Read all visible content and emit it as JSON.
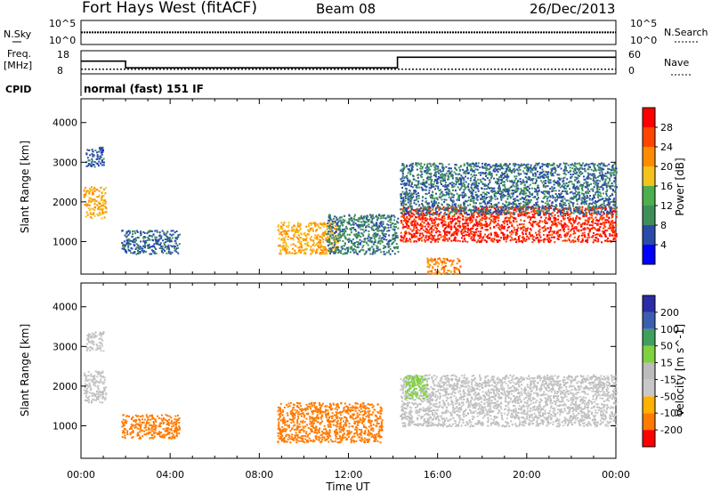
{
  "header": {
    "title": "Fort Hays West (fitACF)",
    "beam": "Beam 08",
    "date": "26/Dec/2013"
  },
  "panels": {
    "noise": {
      "left_label": "N.Sky",
      "right_label": "N.Search",
      "left_ticks": [
        "10^5",
        "10^0"
      ],
      "right_ticks": [
        "10^5",
        "10^0"
      ]
    },
    "freq": {
      "left_label_1": "Freq.",
      "left_label_2": "[MHz]",
      "right_label": "Nave",
      "left_ticks": [
        "18",
        "8"
      ],
      "right_ticks": [
        "60",
        "0"
      ]
    },
    "cpid": {
      "label": "CPID",
      "value": "normal (fast) 151 IF"
    }
  },
  "colors": {
    "power": [
      "#0000ff",
      "#2a4ba8",
      "#3e8e5a",
      "#4cae4c",
      "#f3c21c",
      "#ff8c00",
      "#ff4500",
      "#ff0000"
    ],
    "velocity": [
      "#ff0000",
      "#ff7a00",
      "#ffb000",
      "#c8c8c8",
      "#bcbcbc",
      "#7fd13f",
      "#3f9f5f",
      "#3a5fb0",
      "#2c2ca8"
    ]
  },
  "chart_data": [
    {
      "type": "heatmap",
      "name": "power",
      "ylabel": "Slant Range [km]",
      "yticks": [
        1000,
        2000,
        3000,
        4000
      ],
      "ylim": [
        180,
        4600
      ],
      "colorbar_label": "Power [dB]",
      "colorbar_ticks": [
        4,
        8,
        12,
        16,
        20,
        24,
        28
      ],
      "colorbar_range": [
        0,
        32
      ],
      "regions": [
        {
          "t0": 0.1,
          "t1": 1.1,
          "r0": 1600,
          "r1": 2400,
          "value": 20
        },
        {
          "t0": 0.2,
          "t1": 1.0,
          "r0": 2900,
          "r1": 3400,
          "value": 6
        },
        {
          "t0": 1.8,
          "t1": 4.4,
          "r0": 700,
          "r1": 1300,
          "value": 7
        },
        {
          "t0": 8.8,
          "t1": 11.5,
          "r0": 700,
          "r1": 1500,
          "value": 20
        },
        {
          "t0": 11.0,
          "t1": 14.2,
          "r0": 700,
          "r1": 1700,
          "value": 9
        },
        {
          "t0": 14.3,
          "t1": 24.0,
          "r0": 1000,
          "r1": 1900,
          "value": 28
        },
        {
          "t0": 14.3,
          "t1": 24.0,
          "r0": 1700,
          "r1": 3000,
          "value": 8
        },
        {
          "t0": 15.5,
          "t1": 17.0,
          "r0": 200,
          "r1": 600,
          "value": 22
        }
      ]
    },
    {
      "type": "heatmap",
      "name": "velocity",
      "xlabel": "Time UT",
      "ylabel": "Slant Range [km]",
      "xticks": [
        "00:00",
        "04:00",
        "08:00",
        "12:00",
        "16:00",
        "20:00",
        "00:00"
      ],
      "xlim": [
        0,
        24
      ],
      "yticks": [
        1000,
        2000,
        3000,
        4000
      ],
      "ylim": [
        180,
        4600
      ],
      "colorbar_label": "Velocity [m s^-1]",
      "colorbar_ticks": [
        "200",
        "100",
        "50",
        "15",
        "-15",
        "-50",
        "-100",
        "-200"
      ],
      "regions": [
        {
          "t0": 0.1,
          "t1": 1.1,
          "r0": 1600,
          "r1": 2400,
          "value": 0
        },
        {
          "t0": 0.2,
          "t1": 1.0,
          "r0": 2900,
          "r1": 3400,
          "value": 0
        },
        {
          "t0": 1.8,
          "t1": 4.4,
          "r0": 700,
          "r1": 1300,
          "value": -60
        },
        {
          "t0": 8.8,
          "t1": 13.5,
          "r0": 600,
          "r1": 1600,
          "value": -60
        },
        {
          "t0": 14.3,
          "t1": 24.0,
          "r0": 1000,
          "r1": 2300,
          "value": 0
        },
        {
          "t0": 14.5,
          "t1": 15.5,
          "r0": 1700,
          "r1": 2300,
          "value": 30
        }
      ]
    }
  ],
  "extra_series": {
    "nsky": {
      "value": 0.7
    },
    "freq": [
      {
        "t0": 0.0,
        "t1": 2.0,
        "value": 13.5
      },
      {
        "t0": 2.0,
        "t1": 14.2,
        "value": 10.6
      },
      {
        "t0": 14.2,
        "t1": 24.0,
        "value": 15.2
      }
    ],
    "nave": {
      "value": 12
    }
  }
}
